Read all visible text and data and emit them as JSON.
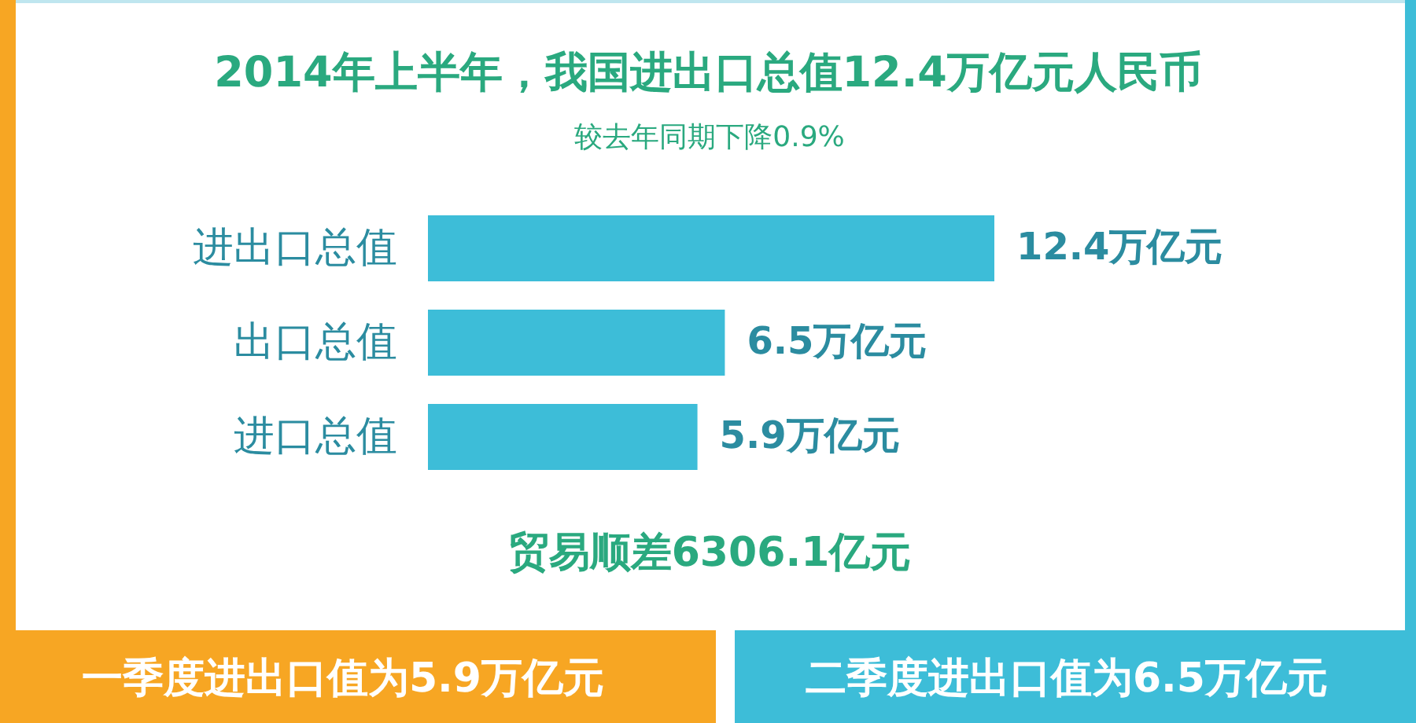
{
  "chart_data": {
    "type": "bar",
    "orientation": "horizontal",
    "title": "2014年上半年，我国进出口总值12.4万亿元人民币",
    "subtitle": "较去年同期下降0.9%",
    "categories": [
      "进出口总值",
      "出口总值",
      "进口总值"
    ],
    "values": [
      12.4,
      6.5,
      5.9
    ],
    "value_labels": [
      "12.4万亿元",
      "6.5万亿元",
      "5.9万亿元"
    ],
    "color": "#3dbdd8",
    "tick_labels": "y",
    "annotations": [
      "贸易顺差6306.1亿元",
      "一季度进出口值为5.9万亿元",
      "二季度进出口值为6.5万亿元"
    ]
  }
}
